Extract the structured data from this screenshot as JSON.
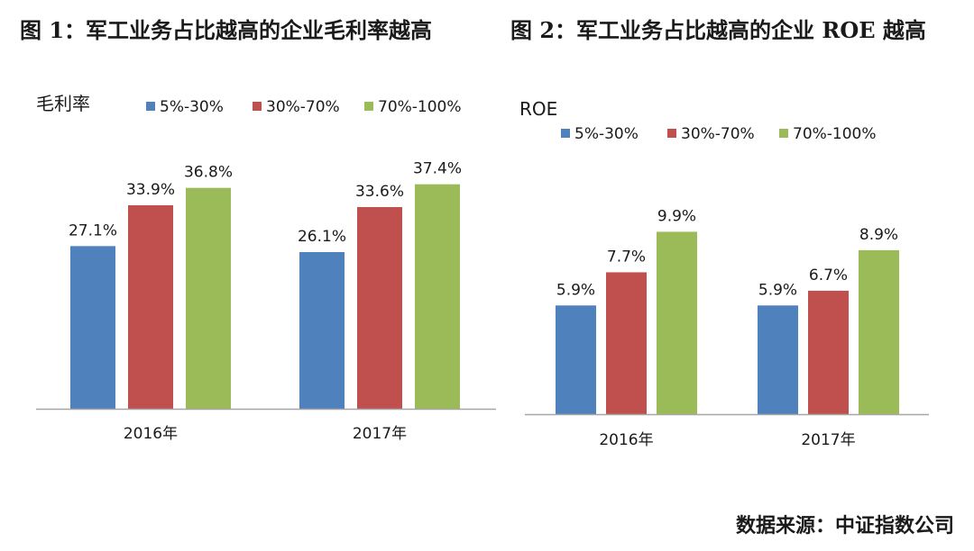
{
  "figure1_title": "图 1：军工业务占比越高的企业毛利率越高",
  "figure2_title": "图 2：军工业务占比越高的企业 ROE 越高",
  "source_note": "数据来源：中证指数公司",
  "colors": {
    "series_blue": "#4f81bd",
    "series_red": "#c0504d",
    "series_green": "#9bbb59",
    "axis": "#a6a6a6"
  },
  "chart_data": [
    {
      "type": "bar",
      "title": "图 1：军工业务占比越高的企业毛利率越高",
      "ylabel": "毛利率",
      "xlabel": "",
      "categories": [
        "2016年",
        "2017年"
      ],
      "series": [
        {
          "name": "5%-30%",
          "values": [
            27.1,
            26.1
          ],
          "labels": [
            "27.1%",
            "26.1%"
          ],
          "color": "#4f81bd"
        },
        {
          "name": "30%-70%",
          "values": [
            33.9,
            33.6
          ],
          "labels": [
            "33.9%",
            "33.6%"
          ],
          "color": "#c0504d"
        },
        {
          "name": "70%-100%",
          "values": [
            36.8,
            37.4
          ],
          "labels": [
            "36.8%",
            "37.4%"
          ],
          "color": "#9bbb59"
        }
      ],
      "ylim": [
        0,
        45
      ],
      "grid": false,
      "legend": "top"
    },
    {
      "type": "bar",
      "title": "图 2：军工业务占比越高的企业 ROE 越高",
      "ylabel": "ROE",
      "xlabel": "",
      "categories": [
        "2016年",
        "2017年"
      ],
      "series": [
        {
          "name": "5%-30%",
          "values": [
            5.9,
            5.9
          ],
          "labels": [
            "5.9%",
            "5.9%"
          ],
          "color": "#4f81bd"
        },
        {
          "name": "30%-70%",
          "values": [
            7.7,
            6.7
          ],
          "labels": [
            "7.7%",
            "6.7%"
          ],
          "color": "#c0504d"
        },
        {
          "name": "70%-100%",
          "values": [
            9.9,
            8.9
          ],
          "labels": [
            "9.9%",
            "8.9%"
          ],
          "color": "#9bbb59"
        }
      ],
      "ylim": [
        0,
        13
      ],
      "grid": false,
      "legend": "top"
    }
  ]
}
